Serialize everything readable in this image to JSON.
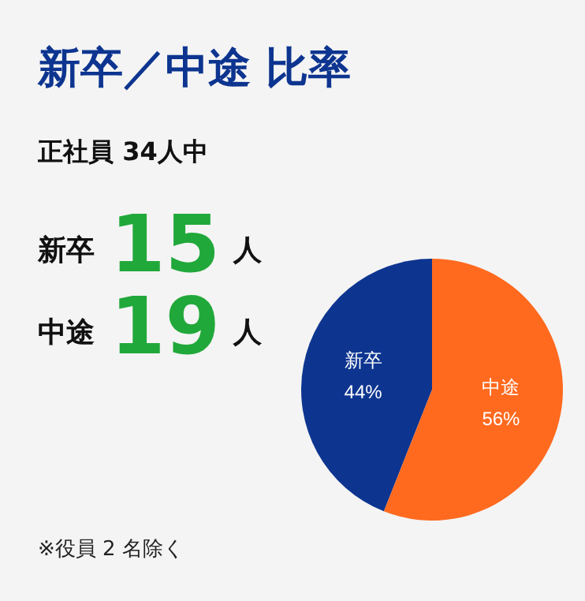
{
  "chart_data": {
    "type": "pie",
    "title": "新卒／中途 比率",
    "subtitle": "正社員 34人中",
    "categories": [
      "新卒",
      "中途"
    ],
    "values": [
      44,
      56
    ],
    "colors": [
      "#0d3590",
      "#ff6a1f"
    ],
    "value_labels": [
      "44%",
      "56%"
    ],
    "legend": false,
    "annotations": [
      "新卒",
      "15",
      "人",
      "中途",
      "19",
      "人",
      "※役員 2 名除く"
    ]
  }
}
